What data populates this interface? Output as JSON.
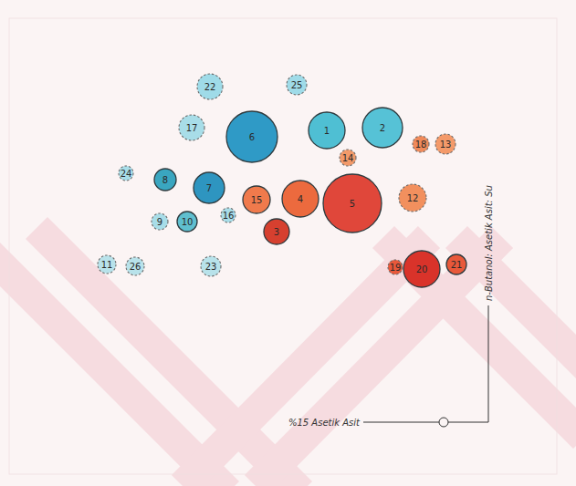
{
  "chart_data": {
    "type": "bubble",
    "xlabel": "%15 Asetik Asit",
    "ylabel": "n-Butanol: Asetik Asit: Su",
    "xlim": [
      0,
      120
    ],
    "ylim": [
      0,
      100
    ],
    "xticks": [],
    "yticks": [],
    "tick_labels": false,
    "grid": false,
    "series": [
      {
        "line_style": "solid",
        "labels": [
          "6",
          "1",
          "2",
          "8",
          "7",
          "15",
          "4",
          "5",
          "10",
          "3",
          "20",
          "21"
        ],
        "x": [
          53.2,
          69.6,
          81.8,
          34.2,
          43.8,
          54.2,
          63.8,
          75.2,
          39,
          58.6,
          90.4,
          98
        ],
        "values": [
          74,
          75.4,
          76,
          64.6,
          62.8,
          60.2,
          60.4,
          59.4,
          55.4,
          53.2,
          45,
          46
        ],
        "size": [
          5.6,
          4,
          4.4,
          2.4,
          3.4,
          3,
          4,
          6.4,
          2.2,
          2.8,
          4,
          2.2
        ],
        "colors": [
          "#2f9ac6",
          "#4fbfd3",
          "#56c2d6",
          "#3aa6c0",
          "#2e95c0",
          "#f07a4c",
          "#ec6a3e",
          "#e0473a",
          "#5fbfcf",
          "#d6402f",
          "#d9332a",
          "#e8583a"
        ]
      },
      {
        "line_style": "dashed",
        "labels": [
          "22",
          "25",
          "17",
          "18",
          "13",
          "14",
          "24",
          "12",
          "9",
          "16",
          "19",
          "11",
          "26",
          "23"
        ],
        "x": [
          44,
          63,
          40,
          90.2,
          95.6,
          74.2,
          25.6,
          88.4,
          33,
          48,
          84.6,
          21.4,
          27.6,
          44.2
        ],
        "values": [
          85,
          85.4,
          76,
          72.4,
          72.4,
          69.4,
          66,
          60.6,
          55.4,
          56.8,
          45.4,
          46,
          45.6,
          45.6
        ],
        "size": [
          2.8,
          2.2,
          2.8,
          1.8,
          2.2,
          1.8,
          1.6,
          3,
          1.8,
          1.6,
          1.6,
          2,
          2,
          2.2
        ],
        "colors": [
          "#9fdbe8",
          "#9fdbe8",
          "#a8dde8",
          "#f08a5a",
          "#f49a6a",
          "#f29a6a",
          "#a8dde8",
          "#f2905e",
          "#a8dde8",
          "#a8dde8",
          "#e8583a",
          "#b8e2ea",
          "#b8e2ea",
          "#b8e2ea"
        ]
      }
    ]
  }
}
